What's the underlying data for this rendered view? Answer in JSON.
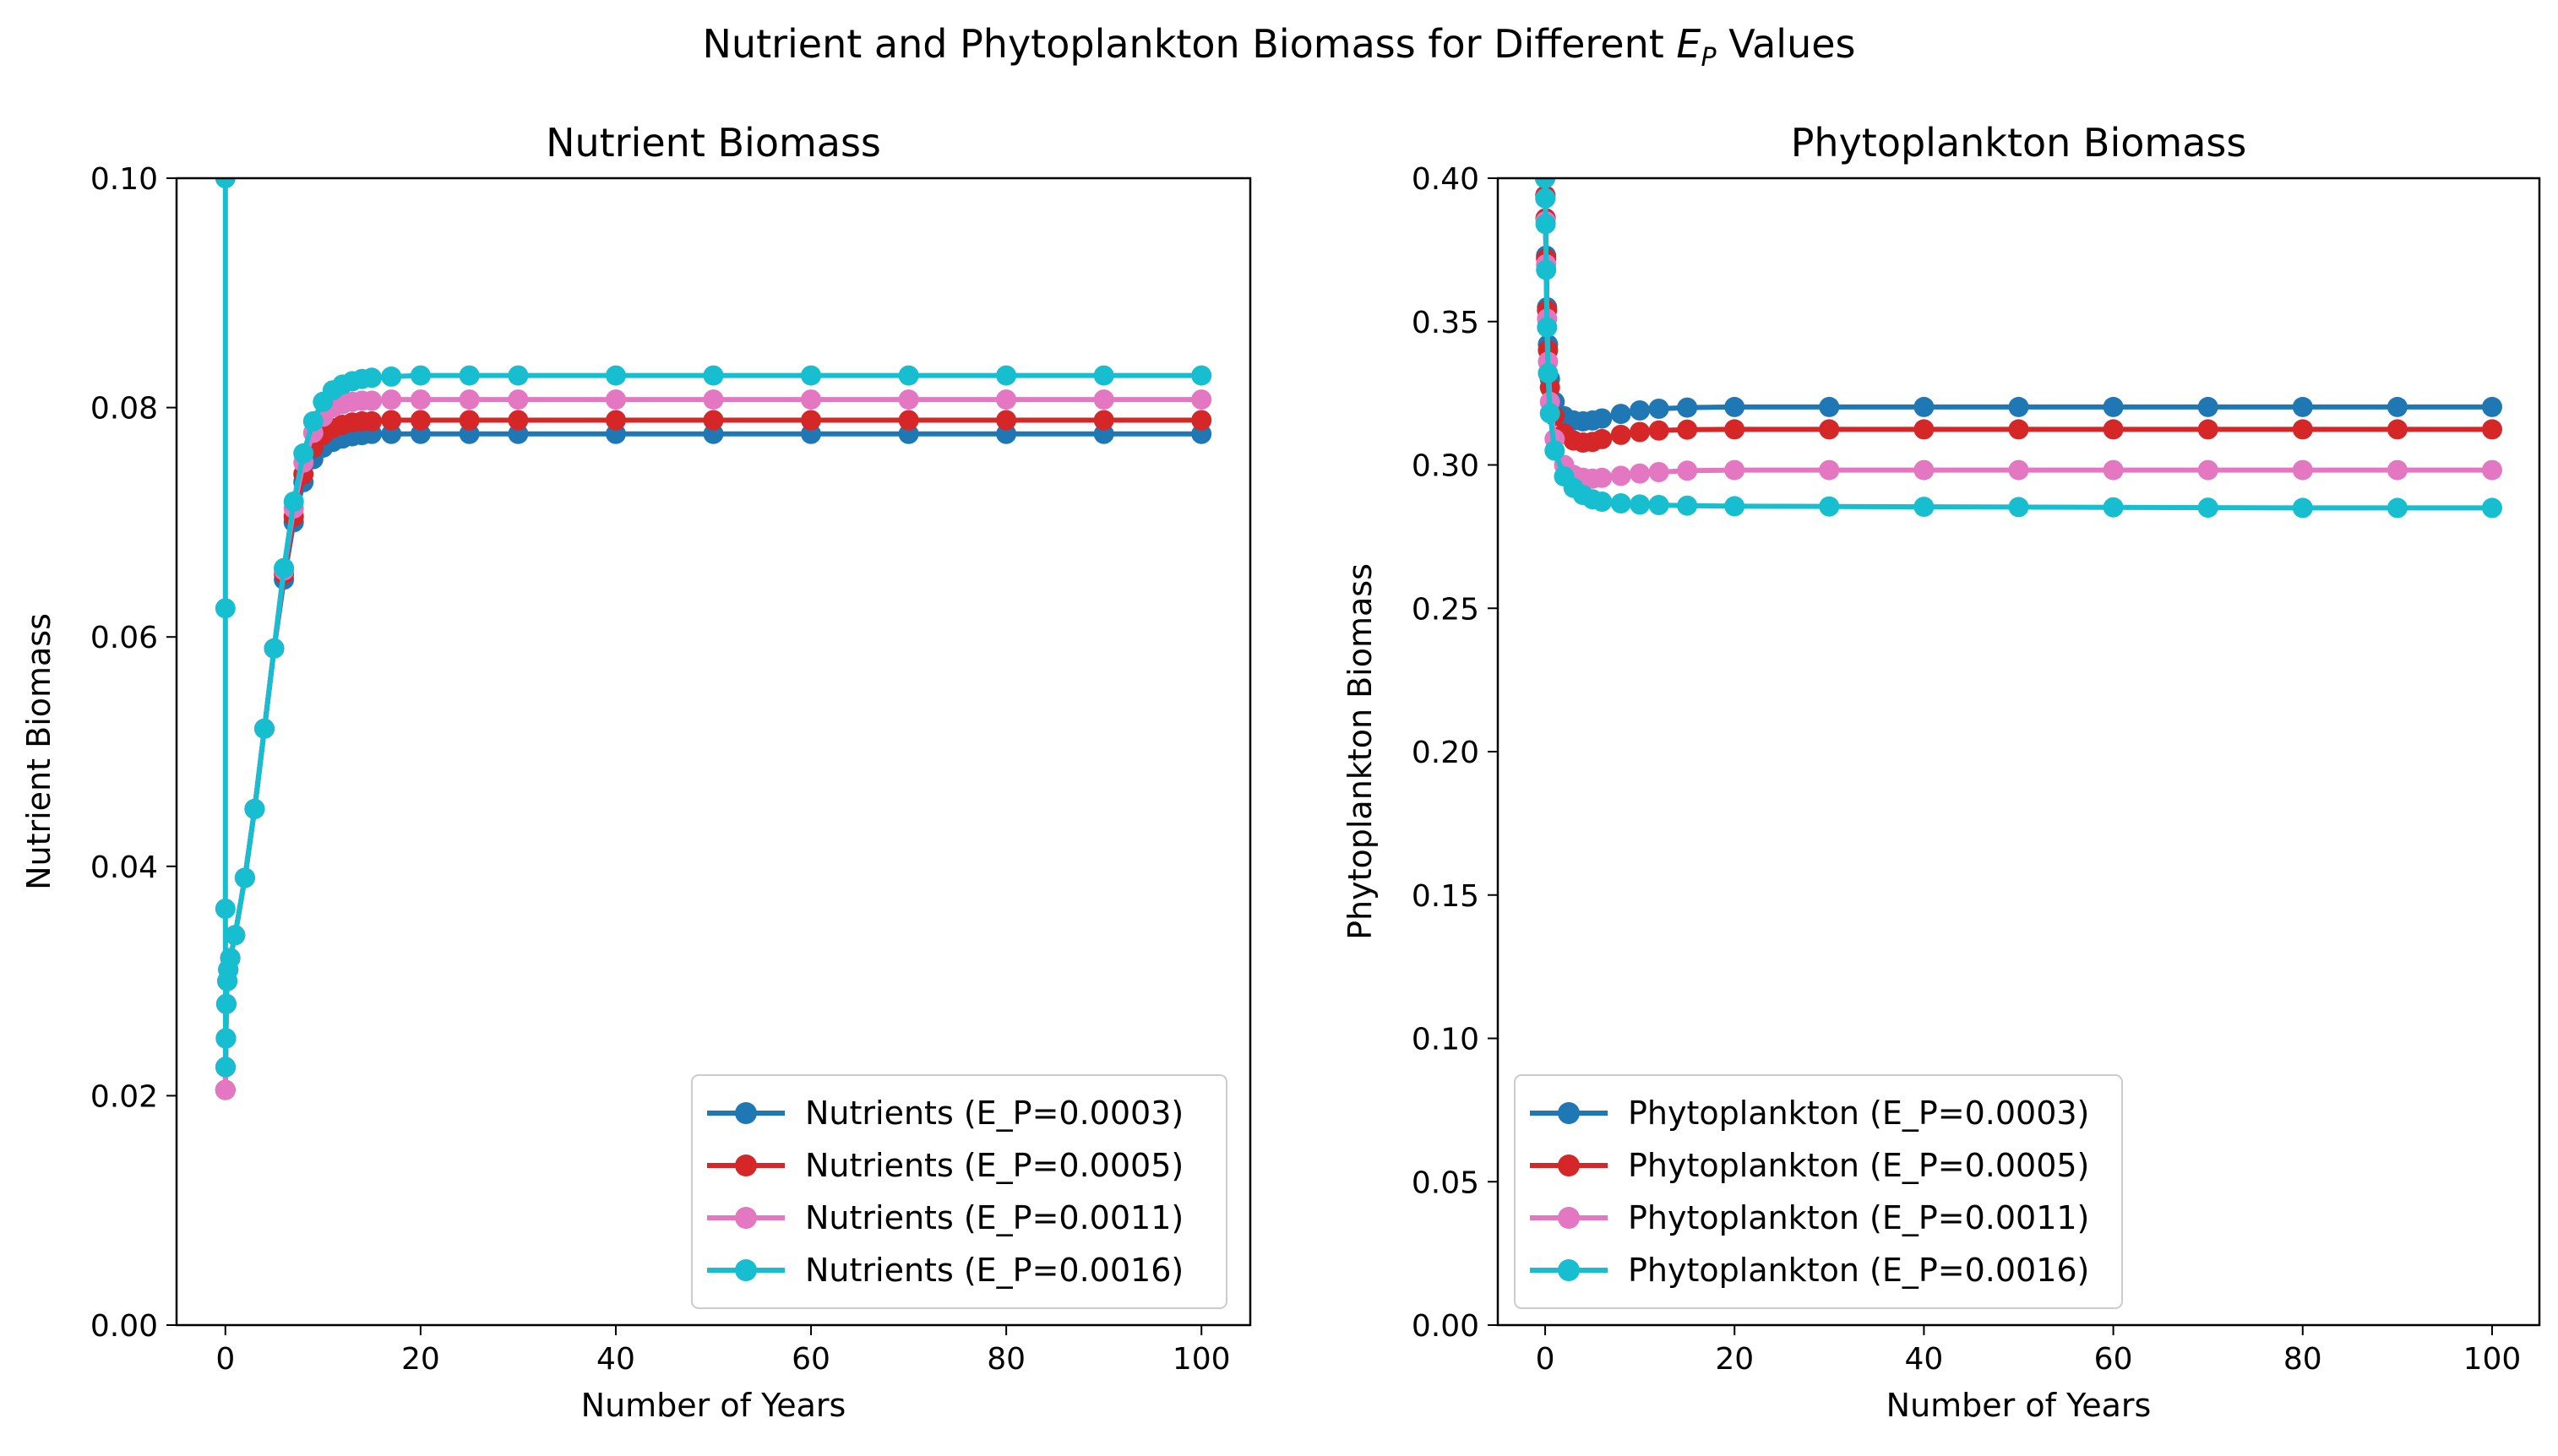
{
  "figure": {
    "suptitle_prefix": "Nutrient and Phytoplankton Biomass for Different ",
    "suptitle_symbol": "E",
    "suptitle_subscript": "P",
    "suptitle_suffix": " Values"
  },
  "chart_data": [
    {
      "type": "line",
      "title": "Nutrient Biomass",
      "xlabel": "Number of Years",
      "ylabel": "Nutrient Biomass",
      "xlim": [
        -5,
        105
      ],
      "ylim": [
        0.0,
        0.1
      ],
      "xticks": [
        0,
        20,
        40,
        60,
        80,
        100
      ],
      "xtick_labels": [
        "0",
        "20",
        "40",
        "60",
        "80",
        "100"
      ],
      "yticks": [
        0.0,
        0.02,
        0.04,
        0.06,
        0.08,
        0.1
      ],
      "ytick_labels": [
        "0.00",
        "0.02",
        "0.04",
        "0.06",
        "0.08",
        "0.10"
      ],
      "grid": false,
      "legend_position": "lower-right",
      "series": [
        {
          "name": "Nutrients (E_P=0.0003)",
          "color": "#1f77b4",
          "x": [
            0,
            0.02,
            0.05,
            0.1,
            0.2,
            0.3,
            0.5,
            1,
            2,
            3,
            4,
            5,
            6,
            7,
            8,
            9,
            10,
            11,
            12,
            13,
            14,
            15,
            17,
            20,
            25,
            30,
            40,
            50,
            60,
            70,
            80,
            90,
            100
          ],
          "y": [
            0.0205,
            0.0225,
            0.025,
            0.028,
            0.03,
            0.031,
            0.032,
            0.034,
            0.039,
            0.045,
            0.052,
            0.059,
            0.065,
            0.07,
            0.0735,
            0.0755,
            0.0765,
            0.077,
            0.0773,
            0.0775,
            0.0776,
            0.0777,
            0.0777,
            0.0777,
            0.0777,
            0.0777,
            0.0777,
            0.0777,
            0.0777,
            0.0777,
            0.0777,
            0.0777,
            0.0777
          ]
        },
        {
          "name": "Nutrients (E_P=0.0005)",
          "color": "#d62728",
          "x": [
            0,
            0.02,
            0.05,
            0.1,
            0.2,
            0.3,
            0.5,
            1,
            2,
            3,
            4,
            5,
            6,
            7,
            8,
            9,
            10,
            11,
            12,
            13,
            14,
            15,
            17,
            20,
            25,
            30,
            40,
            50,
            60,
            70,
            80,
            90,
            100
          ],
          "y": [
            0.0205,
            0.0225,
            0.025,
            0.028,
            0.03,
            0.031,
            0.032,
            0.034,
            0.039,
            0.045,
            0.052,
            0.059,
            0.0655,
            0.0705,
            0.0742,
            0.0765,
            0.0776,
            0.0782,
            0.0785,
            0.0787,
            0.0788,
            0.0788,
            0.0789,
            0.0789,
            0.0789,
            0.0789,
            0.0789,
            0.0789,
            0.0789,
            0.0789,
            0.0789,
            0.0789,
            0.0789
          ]
        },
        {
          "name": "Nutrients (E_P=0.0011)",
          "color": "#e377c2",
          "x": [
            0,
            0.02,
            0.05,
            0.1,
            0.2,
            0.3,
            0.5,
            1,
            2,
            3,
            4,
            5,
            6,
            7,
            8,
            9,
            10,
            11,
            12,
            13,
            14,
            15,
            17,
            20,
            25,
            30,
            40,
            50,
            60,
            70,
            80,
            90,
            100
          ],
          "y": [
            0.0205,
            0.0225,
            0.025,
            0.028,
            0.03,
            0.031,
            0.032,
            0.034,
            0.039,
            0.045,
            0.052,
            0.059,
            0.0658,
            0.0712,
            0.0752,
            0.0778,
            0.0792,
            0.08,
            0.0803,
            0.0805,
            0.0806,
            0.0806,
            0.0807,
            0.0807,
            0.0807,
            0.0807,
            0.0807,
            0.0807,
            0.0807,
            0.0807,
            0.0807,
            0.0807,
            0.0807
          ]
        },
        {
          "name": "Nutrients (E_P=0.0016)",
          "color": "#17becf",
          "x": [
            0,
            0,
            0,
            0.02,
            0.05,
            0.1,
            0.2,
            0.3,
            0.5,
            1,
            2,
            3,
            4,
            5,
            6,
            7,
            8,
            9,
            10,
            11,
            12,
            13,
            14,
            15,
            17,
            20,
            25,
            30,
            40,
            50,
            60,
            70,
            80,
            90,
            100
          ],
          "y": [
            0.1,
            0.0625,
            0.0363,
            0.0225,
            0.025,
            0.028,
            0.03,
            0.031,
            0.032,
            0.034,
            0.039,
            0.045,
            0.052,
            0.059,
            0.066,
            0.0718,
            0.076,
            0.0788,
            0.0805,
            0.0815,
            0.082,
            0.0823,
            0.0825,
            0.0826,
            0.0827,
            0.0828,
            0.0828,
            0.0828,
            0.0828,
            0.0828,
            0.0828,
            0.0828,
            0.0828,
            0.0828,
            0.0828
          ]
        }
      ]
    },
    {
      "type": "line",
      "title": "Phytoplankton Biomass",
      "xlabel": "Number of Years",
      "ylabel": "Phytoplankton Biomass",
      "xlim": [
        -5,
        105
      ],
      "ylim": [
        0.0,
        0.4
      ],
      "xticks": [
        0,
        20,
        40,
        60,
        80,
        100
      ],
      "xtick_labels": [
        "0",
        "20",
        "40",
        "60",
        "80",
        "100"
      ],
      "yticks": [
        0.0,
        0.05,
        0.1,
        0.15,
        0.2,
        0.25,
        0.3,
        0.35,
        0.4
      ],
      "ytick_labels": [
        "0.00",
        "0.05",
        "0.10",
        "0.15",
        "0.20",
        "0.25",
        "0.30",
        "0.35",
        "0.40"
      ],
      "grid": false,
      "legend_position": "lower-left",
      "series": [
        {
          "name": "Phytoplankton (E_P=0.0003)",
          "color": "#1f77b4",
          "x": [
            0,
            0.02,
            0.05,
            0.1,
            0.2,
            0.3,
            0.5,
            1,
            2,
            3,
            4,
            5,
            6,
            8,
            10,
            12,
            15,
            20,
            30,
            40,
            50,
            60,
            70,
            80,
            90,
            100
          ],
          "y": [
            0.4,
            0.394,
            0.386,
            0.373,
            0.355,
            0.342,
            0.33,
            0.322,
            0.317,
            0.3155,
            0.3152,
            0.3155,
            0.3162,
            0.3178,
            0.319,
            0.3196,
            0.32,
            0.3202,
            0.3202,
            0.3202,
            0.3202,
            0.3202,
            0.3202,
            0.3202,
            0.3202,
            0.3202
          ]
        },
        {
          "name": "Phytoplankton (E_P=0.0005)",
          "color": "#d62728",
          "x": [
            0,
            0.02,
            0.05,
            0.1,
            0.2,
            0.3,
            0.5,
            1,
            2,
            3,
            4,
            5,
            6,
            8,
            10,
            12,
            15,
            20,
            30,
            40,
            50,
            60,
            70,
            80,
            90,
            100
          ],
          "y": [
            0.4,
            0.394,
            0.386,
            0.372,
            0.354,
            0.34,
            0.327,
            0.317,
            0.311,
            0.3085,
            0.3078,
            0.308,
            0.309,
            0.3105,
            0.3115,
            0.312,
            0.3123,
            0.3124,
            0.3124,
            0.3124,
            0.3124,
            0.3124,
            0.3124,
            0.3124,
            0.3124,
            0.3124
          ]
        },
        {
          "name": "Phytoplankton (E_P=0.0011)",
          "color": "#e377c2",
          "x": [
            0,
            0.02,
            0.05,
            0.1,
            0.2,
            0.3,
            0.5,
            1,
            2,
            3,
            4,
            5,
            6,
            8,
            10,
            12,
            15,
            20,
            30,
            40,
            50,
            60,
            70,
            80,
            90,
            100
          ],
          "y": [
            0.4,
            0.393,
            0.385,
            0.37,
            0.351,
            0.336,
            0.322,
            0.309,
            0.3,
            0.2965,
            0.2955,
            0.2952,
            0.2955,
            0.2962,
            0.297,
            0.2975,
            0.298,
            0.2982,
            0.2982,
            0.2982,
            0.2982,
            0.2982,
            0.2982,
            0.2982,
            0.2982,
            0.2982
          ]
        },
        {
          "name": "Phytoplankton (E_P=0.0016)",
          "color": "#17becf",
          "x": [
            0,
            0.02,
            0.05,
            0.1,
            0.2,
            0.3,
            0.5,
            1,
            2,
            3,
            4,
            5,
            6,
            8,
            10,
            12,
            15,
            20,
            30,
            40,
            50,
            60,
            70,
            80,
            90,
            100
          ],
          "y": [
            0.4,
            0.393,
            0.384,
            0.368,
            0.348,
            0.332,
            0.318,
            0.305,
            0.296,
            0.292,
            0.2895,
            0.288,
            0.2872,
            0.2866,
            0.2862,
            0.286,
            0.2858,
            0.2856,
            0.2855,
            0.2854,
            0.2853,
            0.2852,
            0.2851,
            0.285,
            0.285,
            0.285
          ]
        }
      ]
    }
  ]
}
